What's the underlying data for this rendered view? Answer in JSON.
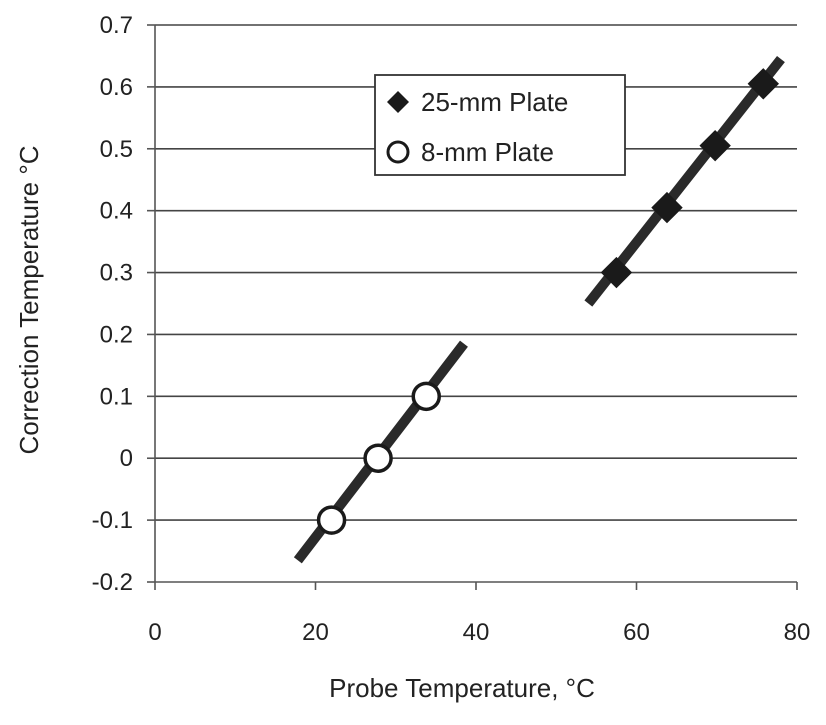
{
  "chart_data": {
    "type": "scatter",
    "title": "",
    "xlabel": "Probe Temperature, °C",
    "ylabel": "Correction Temperature °C",
    "xlim": [
      0,
      80
    ],
    "ylim": [
      -0.2,
      0.7
    ],
    "x_ticks": [
      0,
      20,
      40,
      60,
      80
    ],
    "y_ticks": [
      -0.2,
      -0.1,
      0,
      0.1,
      0.2,
      0.3,
      0.4,
      0.5,
      0.6,
      0.7
    ],
    "x_tick_labels": [
      "0",
      "20",
      "40",
      "60",
      "80"
    ],
    "y_tick_labels": [
      "-0.2",
      "-0.1",
      "0",
      "0.1",
      "0.2",
      "0.3",
      "0.4",
      "0.5",
      "0.6",
      "0.7"
    ],
    "grid": "horizontal",
    "legend_position": "top-center",
    "series": [
      {
        "name": "25-mm Plate",
        "marker": "filled-diamond",
        "points": [
          [
            57.5,
            0.3
          ],
          [
            63.8,
            0.405
          ],
          [
            69.8,
            0.505
          ],
          [
            75.8,
            0.605
          ]
        ],
        "fit_line": [
          [
            54.0,
            0.25
          ],
          [
            78.0,
            0.645
          ]
        ]
      },
      {
        "name": "8-mm Plate",
        "marker": "open-circle",
        "points": [
          [
            22.0,
            -0.1
          ],
          [
            27.8,
            0.0
          ],
          [
            33.8,
            0.1
          ]
        ],
        "fit_line": [
          [
            17.8,
            -0.165
          ],
          [
            38.5,
            0.185
          ]
        ]
      }
    ],
    "colors": {
      "marks": "#1a1a1a",
      "line": "#2a2a2a",
      "grid": "#444444",
      "axis": "#555555"
    }
  }
}
